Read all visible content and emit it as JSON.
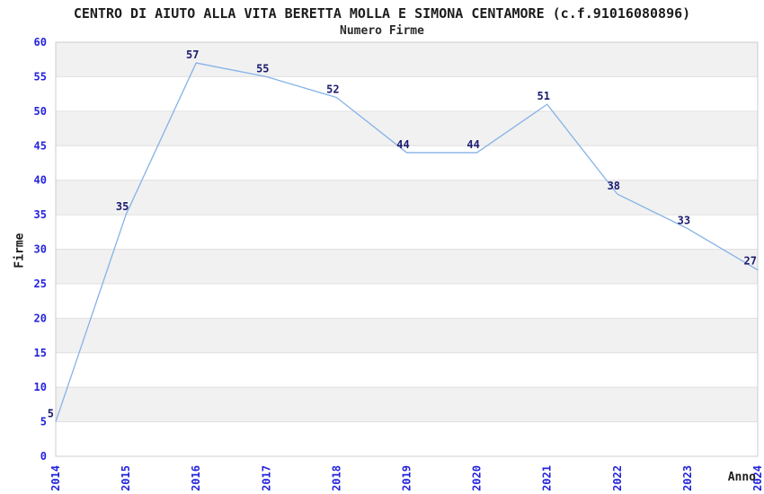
{
  "chart_data": {
    "type": "line",
    "title": "CENTRO DI AIUTO ALLA VITA BERETTA MOLLA E SIMONA CENTAMORE (c.f.91016080896)",
    "subtitle": "Numero Firme",
    "xlabel": "Anno",
    "ylabel": "Firme",
    "categories": [
      "2014",
      "2015",
      "2016",
      "2017",
      "2018",
      "2019",
      "2020",
      "2021",
      "2022",
      "2023",
      "2024"
    ],
    "values": [
      5,
      35,
      57,
      55,
      52,
      44,
      44,
      51,
      38,
      33,
      27
    ],
    "ylim": [
      0,
      60
    ],
    "ytick_step": 5,
    "grid": "alternating-horizontal-bands",
    "legend_position": "none",
    "point_labels_visible": true,
    "colors": {
      "line": "#86b2e8",
      "point_label": "#1c1c6e",
      "tick_label": "#2323dd",
      "band_fill": "#f1f1f1",
      "gridline": "#e0e0e0",
      "plot_border": "#cccccc",
      "text": "#1c1c1c",
      "background": "#ffffff"
    }
  }
}
